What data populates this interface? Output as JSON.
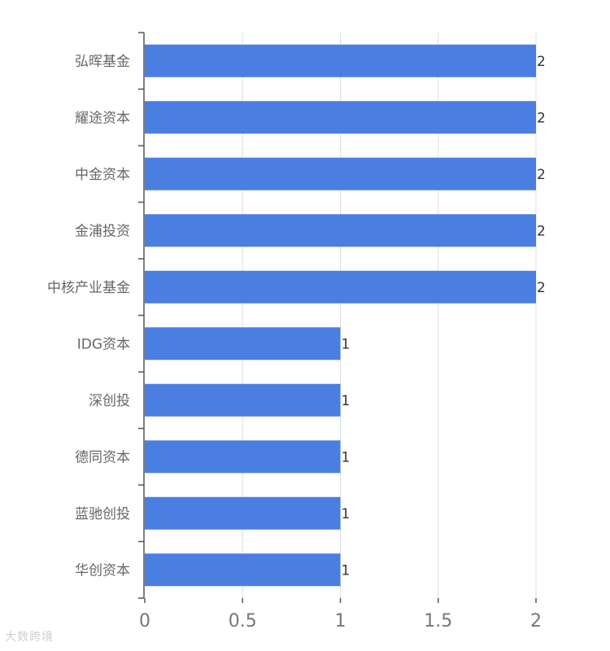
{
  "chart_data": {
    "type": "bar",
    "orientation": "horizontal",
    "categories": [
      "弘晖基金",
      "耀途资本",
      "中金资本",
      "金浦投资",
      "中核产业基金",
      "IDG资本",
      "深创投",
      "德同资本",
      "蓝驰创投",
      "华创资本"
    ],
    "values": [
      2,
      2,
      2,
      2,
      2,
      1,
      1,
      1,
      1,
      1
    ],
    "xlim": [
      0,
      2
    ],
    "xticks": [
      "0",
      "0.5",
      "1",
      "1.5",
      "2"
    ],
    "grid": true,
    "bar_color": "#4a7ee0",
    "title": "",
    "xlabel": "",
    "ylabel": ""
  },
  "watermark": "大数跨境"
}
